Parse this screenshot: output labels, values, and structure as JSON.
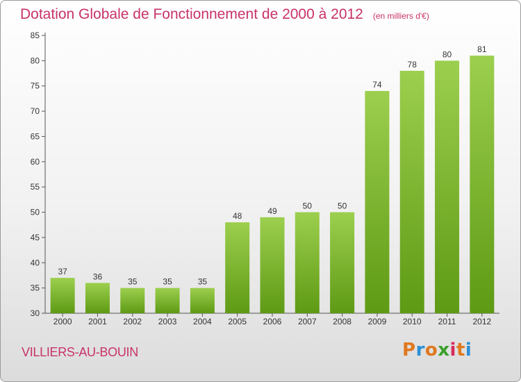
{
  "chart_data": {
    "type": "bar",
    "title": "Dotation Globale de Fonctionnement de 2000 à 2012",
    "subtitle": "(en milliers d'€)",
    "categories": [
      "2000",
      "2001",
      "2002",
      "2003",
      "2004",
      "2005",
      "2006",
      "2007",
      "2008",
      "2009",
      "2010",
      "2011",
      "2012"
    ],
    "values": [
      37,
      36,
      35,
      35,
      35,
      48,
      49,
      50,
      50,
      74,
      78,
      80,
      81
    ],
    "ylim": [
      30,
      85
    ],
    "yticks": [
      30,
      35,
      40,
      45,
      50,
      55,
      60,
      65,
      70,
      75,
      80,
      85
    ],
    "grid": false,
    "bar_color_top": "#9ccf4e",
    "bar_color_bottom": "#5e9a14"
  },
  "commune": "VILLIERS-AU-BOUIN",
  "logo": {
    "letters": [
      "P",
      "r",
      "o",
      "x",
      "i",
      "t",
      "i"
    ],
    "colors": [
      "#e0781e",
      "#2a8fd6",
      "#e0781e",
      "#3aa02a",
      "#d62a5a",
      "#e0781e",
      "#2a8fd6"
    ]
  }
}
